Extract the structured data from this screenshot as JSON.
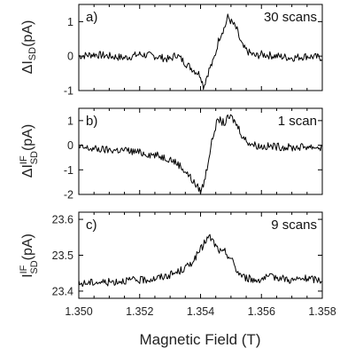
{
  "chart_data": {
    "type": "line",
    "xlabel": "Magnetic Field (T)",
    "x_tick_labels": [
      "1.350",
      "1.352",
      "1.354",
      "1.356",
      "1.358"
    ],
    "xlim": [
      1.35,
      1.358
    ],
    "panels": [
      {
        "id": "a",
        "panel_label": "a)",
        "annotation": "30 scans",
        "ylabel_main": "ΔI",
        "ylabel_sub": "SD",
        "ylabel_sup": "",
        "ylabel_unit": "(pA)",
        "ylim": [
          -1,
          1.5
        ],
        "yticks": [
          -1,
          0,
          1
        ],
        "y_tick_labels": [
          "-1",
          "0",
          "1"
        ],
        "series": [
          {
            "x": [
              1.35,
              1.3505,
              1.351,
              1.3515,
              1.352,
              1.3525,
              1.353,
              1.3532,
              1.3535,
              1.3537,
              1.354,
              1.3541,
              1.3542,
              1.3543,
              1.3544,
              1.3545,
              1.3546,
              1.3547,
              1.3548,
              1.3549,
              1.355,
              1.3551,
              1.3552,
              1.3553,
              1.3554,
              1.3556,
              1.3558,
              1.356,
              1.3565,
              1.357,
              1.3575,
              1.358
            ],
            "y": [
              0.0,
              0.05,
              0.0,
              -0.05,
              0.05,
              0.0,
              -0.1,
              0.05,
              -0.2,
              -0.35,
              -0.55,
              -0.9,
              -0.6,
              -0.35,
              -0.2,
              0.1,
              0.5,
              0.7,
              0.85,
              1.15,
              1.0,
              0.9,
              0.75,
              0.45,
              0.25,
              0.1,
              0.0,
              0.05,
              0.0,
              -0.05,
              0.0,
              -0.05
            ]
          }
        ]
      },
      {
        "id": "b",
        "panel_label": "b)",
        "annotation": "1 scan",
        "ylabel_main": "ΔI",
        "ylabel_sub": "SD",
        "ylabel_sup": "IF",
        "ylabel_unit": "(pA)",
        "ylim": [
          -2,
          1.5
        ],
        "yticks": [
          -2,
          -1,
          0,
          1
        ],
        "y_tick_labels": [
          "-2",
          "-1",
          "0",
          "1"
        ],
        "series": [
          {
            "x": [
              1.35,
              1.3505,
              1.351,
              1.3515,
              1.352,
              1.3525,
              1.353,
              1.3533,
              1.3536,
              1.3538,
              1.354,
              1.3541,
              1.3542,
              1.3543,
              1.3544,
              1.3545,
              1.3546,
              1.3547,
              1.3548,
              1.3549,
              1.355,
              1.3551,
              1.3552,
              1.3553,
              1.3554,
              1.3556,
              1.3558,
              1.356,
              1.3565,
              1.357,
              1.3575,
              1.358
            ],
            "y": [
              -0.1,
              -0.15,
              -0.2,
              -0.2,
              -0.3,
              -0.4,
              -0.55,
              -0.8,
              -1.2,
              -1.55,
              -1.85,
              -1.6,
              -1.0,
              -0.3,
              0.3,
              0.8,
              1.05,
              0.95,
              0.9,
              1.1,
              1.15,
              1.0,
              0.8,
              0.6,
              0.3,
              0.1,
              0.0,
              -0.05,
              -0.05,
              -0.1,
              -0.05,
              -0.1
            ]
          }
        ]
      },
      {
        "id": "c",
        "panel_label": "c)",
        "annotation": "9 scans",
        "ylabel_main": "I",
        "ylabel_sub": "SD",
        "ylabel_sup": "IF",
        "ylabel_unit": "(pA)",
        "ylim": [
          23.38,
          23.62
        ],
        "yticks": [
          23.4,
          23.5,
          23.6
        ],
        "y_tick_labels": [
          "23.4",
          "23.5",
          "23.6"
        ],
        "series": [
          {
            "x": [
              1.35,
              1.3505,
              1.351,
              1.3515,
              1.352,
              1.3525,
              1.353,
              1.3533,
              1.3536,
              1.3538,
              1.354,
              1.3541,
              1.3542,
              1.3543,
              1.3544,
              1.3545,
              1.3546,
              1.3547,
              1.3548,
              1.3549,
              1.355,
              1.3551,
              1.3552,
              1.3554,
              1.3556,
              1.3558,
              1.356,
              1.3565,
              1.357,
              1.3575,
              1.358
            ],
            "y": [
              23.42,
              23.425,
              23.425,
              23.43,
              23.43,
              23.435,
              23.445,
              23.455,
              23.47,
              23.49,
              23.515,
              23.53,
              23.545,
              23.55,
              23.54,
              23.525,
              23.515,
              23.505,
              23.51,
              23.5,
              23.49,
              23.475,
              23.455,
              23.44,
              23.435,
              23.43,
              23.435,
              23.44,
              23.43,
              23.435,
              23.43
            ]
          }
        ]
      }
    ]
  }
}
